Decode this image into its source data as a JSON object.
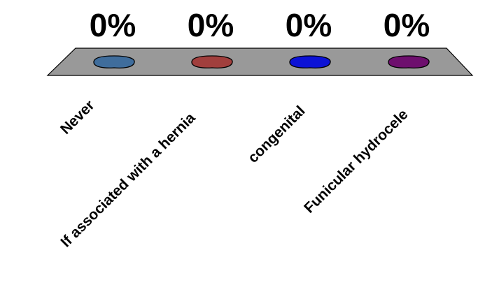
{
  "chart_data": {
    "type": "bar",
    "categories": [
      "Never",
      "If associated with a hernia",
      "congenital",
      "Funicular hydrocele"
    ],
    "values": [
      0,
      0,
      0,
      0
    ],
    "data_labels": [
      "0%",
      "0%",
      "0%",
      "0%"
    ],
    "ylim": [
      0,
      100
    ],
    "grid": false,
    "legend": "none",
    "colors": {
      "platform": "#999999",
      "series": [
        "#3f6d9c",
        "#a13f3d",
        "#0c12d6",
        "#6e0f6e"
      ]
    }
  }
}
